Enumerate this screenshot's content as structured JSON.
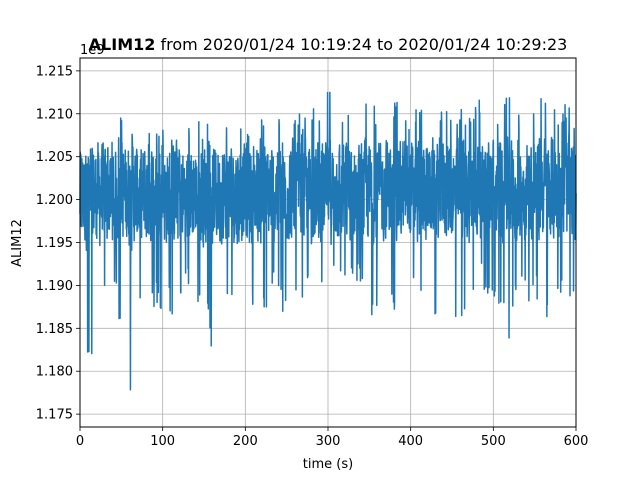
{
  "chart_data": {
    "type": "line",
    "title_bold": "ALIM12",
    "title_rest": " from 2020/01/24 10:19:24 to 2020/01/24 10:29:23",
    "xlabel": "time (s)",
    "ylabel": "ALIM12",
    "y_offset_label": "1e9",
    "xlim": [
      0,
      600
    ],
    "ylim": [
      1.1735,
      1.2165
    ],
    "x_ticks": [
      0,
      100,
      200,
      300,
      400,
      500,
      600
    ],
    "x_tick_labels": [
      "0",
      "100",
      "200",
      "300",
      "400",
      "500",
      "600"
    ],
    "y_ticks": [
      1.175,
      1.18,
      1.185,
      1.19,
      1.195,
      1.2,
      1.205,
      1.21,
      1.215
    ],
    "y_tick_labels": [
      "1.175",
      "1.180",
      "1.185",
      "1.190",
      "1.195",
      "1.200",
      "1.205",
      "1.210",
      "1.215"
    ],
    "grid": true,
    "series": [
      {
        "color": "#1f77b4",
        "x": [
          0,
          10,
          20,
          30,
          40,
          50,
          60,
          70,
          80,
          90,
          100,
          110,
          120,
          130,
          140,
          150,
          160,
          170,
          180,
          190,
          200,
          210,
          220,
          230,
          240,
          250,
          260,
          270,
          280,
          290,
          300,
          310,
          320,
          330,
          340,
          350,
          360,
          370,
          380,
          390,
          400,
          410,
          420,
          430,
          440,
          450,
          460,
          470,
          480,
          490,
          500,
          510,
          520,
          530,
          540,
          550,
          560,
          570,
          580,
          590,
          600
        ],
        "y_max": [
          1.2075,
          1.2088,
          1.2082,
          1.2062,
          1.2072,
          1.2098,
          1.2077,
          1.2085,
          1.2078,
          1.2084,
          1.2081,
          1.2093,
          1.2074,
          1.2085,
          1.2092,
          1.2093,
          1.2084,
          1.2083,
          1.2094,
          1.2106,
          1.2095,
          1.2088,
          1.2097,
          1.2102,
          1.2098,
          1.2094,
          1.2101,
          1.2099,
          1.2104,
          1.2112,
          1.2144,
          1.2103,
          1.2098,
          1.2105,
          1.2116,
          1.2127,
          1.2099,
          1.2098,
          1.2116,
          1.2109,
          1.2104,
          1.2118,
          1.2099,
          1.2107,
          1.2106,
          1.2099,
          1.2107,
          1.2109,
          1.2119,
          1.2119,
          1.2116,
          1.2108,
          1.2131,
          1.2122,
          1.2109,
          1.2116,
          1.2121,
          1.2123,
          1.2106,
          1.2118,
          1.2104
        ],
        "y_min": [
          1.1865,
          1.1795,
          1.1825,
          1.1875,
          1.1885,
          1.1845,
          1.1752,
          1.1865,
          1.1895,
          1.1865,
          1.1872,
          1.1865,
          1.1865,
          1.1885,
          1.1855,
          1.1875,
          1.1815,
          1.1845,
          1.1885,
          1.1895,
          1.1885,
          1.1855,
          1.1855,
          1.1885,
          1.1875,
          1.1855,
          1.1875,
          1.1885,
          1.1875,
          1.1875,
          1.1875,
          1.1895,
          1.1875,
          1.1895,
          1.1895,
          1.1865,
          1.1855,
          1.1875,
          1.1845,
          1.1885,
          1.1895,
          1.1865,
          1.1875,
          1.1855,
          1.1895,
          1.1865,
          1.1835,
          1.1875,
          1.1885,
          1.1895,
          1.1865,
          1.1875,
          1.1825,
          1.1895,
          1.1885,
          1.1875,
          1.1875,
          1.1845,
          1.1895,
          1.1875,
          1.1885
        ]
      }
    ]
  }
}
